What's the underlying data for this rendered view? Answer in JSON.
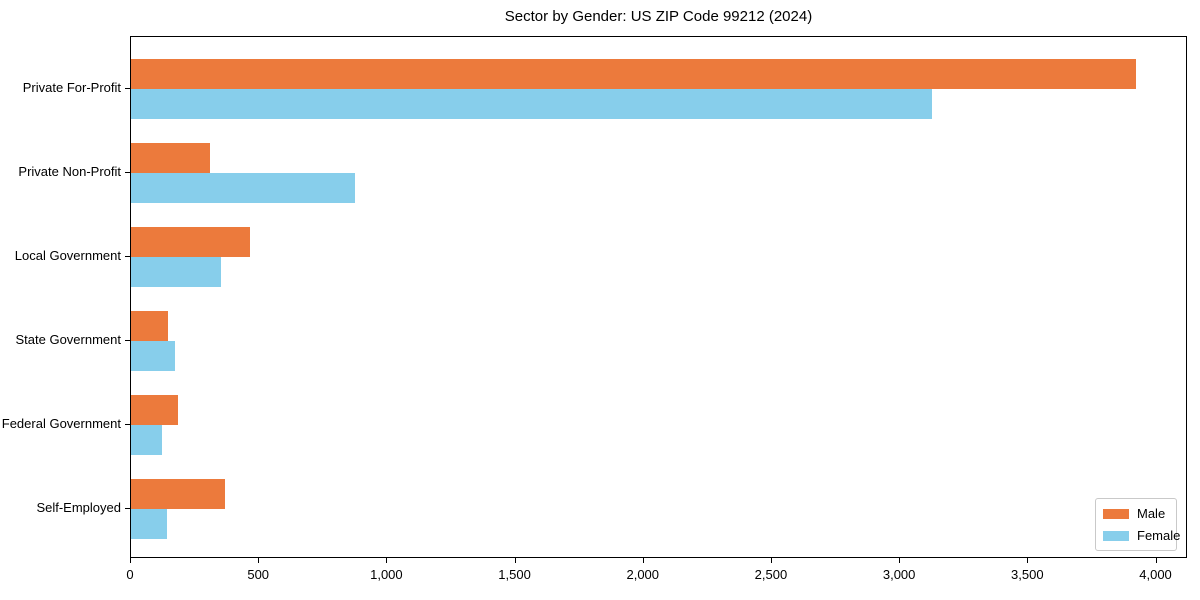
{
  "figure": {
    "background": "#ffffff",
    "axis_color": "#000000",
    "text_color": "#000000"
  },
  "chart_data": {
    "type": "bar",
    "orientation": "horizontal",
    "title": "Sector by Gender: US ZIP Code 99212 (2024)",
    "xlabel": "",
    "ylabel": "",
    "categories": [
      "Private For-Profit",
      "Private Non-Profit",
      "Local Government",
      "State Government",
      "Federal Government",
      "Self-Employed"
    ],
    "series": [
      {
        "name": "Male",
        "color": "#EC7A3C",
        "values": [
          3920,
          310,
          465,
          145,
          185,
          365
        ]
      },
      {
        "name": "Female",
        "color": "#87CEEB",
        "values": [
          3125,
          875,
          350,
          170,
          120,
          140
        ]
      }
    ],
    "xlim": [
      0,
      4115
    ],
    "xticks": [
      0,
      500,
      1000,
      1500,
      2000,
      2500,
      3000,
      3500,
      4000
    ],
    "xticklabels": [
      "0",
      "500",
      "1,000",
      "1,500",
      "2,000",
      "2,500",
      "3,000",
      "3,500",
      "4,000"
    ],
    "grid": false,
    "legend_position": "lower right"
  }
}
